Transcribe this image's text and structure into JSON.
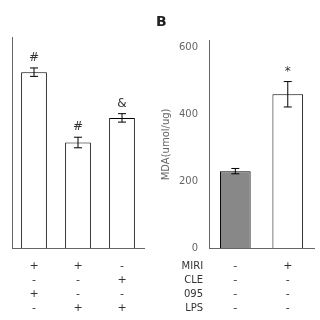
{
  "chart_data": [
    {
      "type": "bar",
      "categories": [
        null,
        null,
        null
      ],
      "values": [
        500,
        300,
        370
      ],
      "errors": [
        12,
        15,
        12
      ],
      "colors": [
        "white",
        "white",
        "white"
      ],
      "annotations": [
        "#",
        "#",
        "&"
      ],
      "rows": [
        [
          "+",
          "+",
          "-"
        ],
        [
          "-",
          "-",
          "+"
        ],
        [
          "+",
          "-",
          "-"
        ],
        [
          "-",
          "+",
          "+"
        ]
      ],
      "ylim": [
        0,
        600
      ],
      "yticks": [],
      "grid": false,
      "tick_labels": false
    },
    {
      "type": "bar",
      "title": "B",
      "ylabel": "MDA(umol/ug)",
      "categories": [
        null,
        null
      ],
      "values": [
        230,
        460
      ],
      "errors": [
        8,
        38
      ],
      "colors": [
        "#888888",
        "white"
      ],
      "annotations": [
        null,
        "*"
      ],
      "rows": [
        [
          "-",
          "+"
        ],
        [
          "-",
          "-"
        ],
        [
          "-",
          "-"
        ],
        [
          "-",
          "-"
        ]
      ],
      "row_labels": [
        "MIRI",
        "CLE",
        "095",
        "LPS"
      ],
      "ylim": [
        0,
        620
      ],
      "yticks": [
        0,
        200,
        400,
        600
      ],
      "grid": false,
      "tick_labels": "y"
    }
  ]
}
